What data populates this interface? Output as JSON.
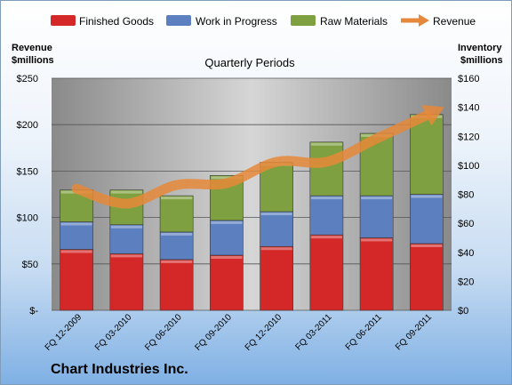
{
  "chart_data": {
    "type": "bar",
    "stacked": true,
    "title": "Quarterly Periods",
    "categories": [
      "FQ 12-2009",
      "FQ 03-2010",
      "FQ 06-2010",
      "FQ 09-2010",
      "FQ 12-2010",
      "FQ 03-2011",
      "FQ 06-2011",
      "FQ 09-2011"
    ],
    "series": [
      {
        "name": "Finished Goods",
        "axis": "right",
        "color": "#d42828",
        "values": [
          42,
          39,
          35,
          38,
          44,
          52,
          50,
          46
        ]
      },
      {
        "name": "Work in Progress",
        "axis": "right",
        "color": "#5b7fbf",
        "values": [
          19,
          20,
          19,
          24,
          24,
          27,
          29,
          34
        ]
      },
      {
        "name": "Raw Materials",
        "axis": "right",
        "color": "#7fa040",
        "values": [
          22,
          24,
          25,
          31,
          34,
          37,
          43,
          55
        ]
      }
    ],
    "line_series": {
      "name": "Revenue",
      "axis": "left",
      "color": "#e6883a",
      "values": [
        131,
        115,
        135,
        137,
        160,
        160,
        185,
        210
      ]
    },
    "ylabel_left": "Revenue\n$millions",
    "ylabel_right": "Inventory\n$millions",
    "left_ticks": [
      "$-",
      "$50",
      "$100",
      "$150",
      "$200",
      "$250"
    ],
    "right_ticks": [
      "$0",
      "$20",
      "$40",
      "$60",
      "$80",
      "$100",
      "$120",
      "$140",
      "$160"
    ],
    "ylim_left": [
      0,
      250
    ],
    "ylim_right": [
      0,
      160
    ],
    "legend_position": "top",
    "grid": true
  },
  "company": "Chart Industries Inc."
}
